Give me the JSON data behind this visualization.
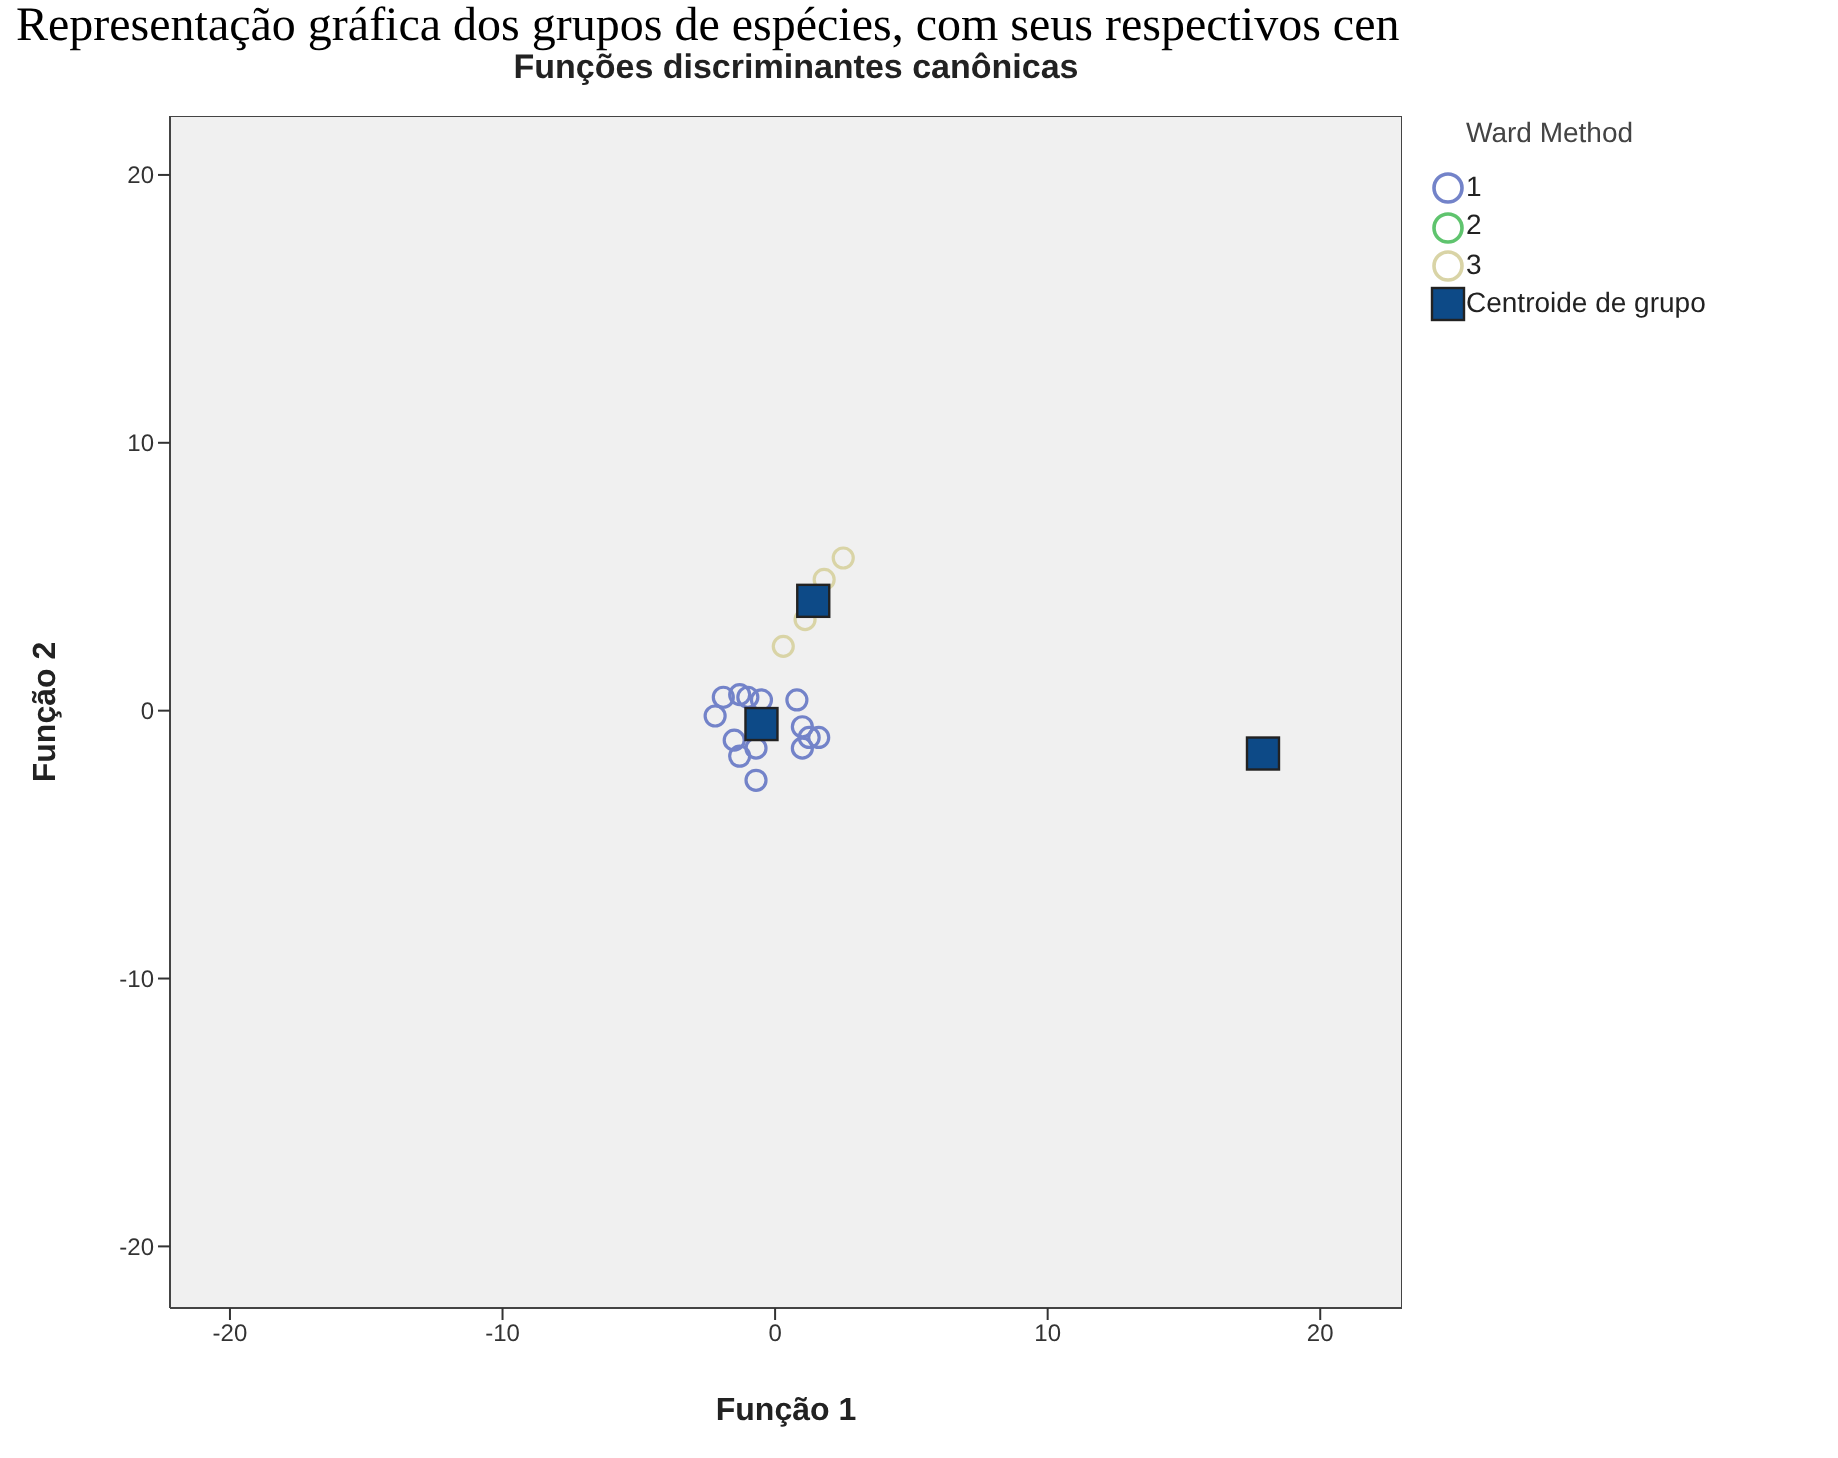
{
  "chart_data": {
    "type": "scatter",
    "title": "Representação gráfica dos grupos de espécies, com seus respectivos cen",
    "subtitle": "Funções discriminantes canônicas",
    "xlabel": "Função 1",
    "ylabel": "Função 2",
    "legend_title": "Ward Method",
    "xlim": [
      -22.2,
      23
    ],
    "ylim": [
      -22.3,
      22.2
    ],
    "xticks": [
      -20,
      -10,
      0,
      10,
      20
    ],
    "yticks": [
      -20,
      -10,
      0,
      10,
      20
    ],
    "grid": false,
    "legend": "top right",
    "marker": "circle",
    "series": [
      {
        "name": "1",
        "color": "#7383c9",
        "x": [
          -1.9,
          -2.2,
          -1.3,
          -1.0,
          -0.5,
          0.8,
          -1.5,
          -1.3,
          -0.7,
          -0.7,
          1.0,
          1.0,
          1.25,
          1.6
        ],
        "values": [
          0.5,
          -0.2,
          0.6,
          0.5,
          0.4,
          0.4,
          -1.1,
          -1.7,
          -1.4,
          -2.6,
          -0.6,
          -1.4,
          -1.0,
          -1.0
        ]
      },
      {
        "name": "2",
        "color": "#5fc46e"
      },
      {
        "name": "3",
        "color": "#d9d4a6",
        "x": [
          2.5,
          1.8,
          1.1,
          0.3
        ],
        "values": [
          5.7,
          4.9,
          3.4,
          2.4
        ]
      },
      {
        "name": "Centroide de grupo",
        "color": "#0d4a87",
        "marker": "square",
        "x": [
          -0.5,
          17.9,
          1.4
        ],
        "values": [
          -0.5,
          -1.6,
          4.1
        ]
      }
    ]
  }
}
